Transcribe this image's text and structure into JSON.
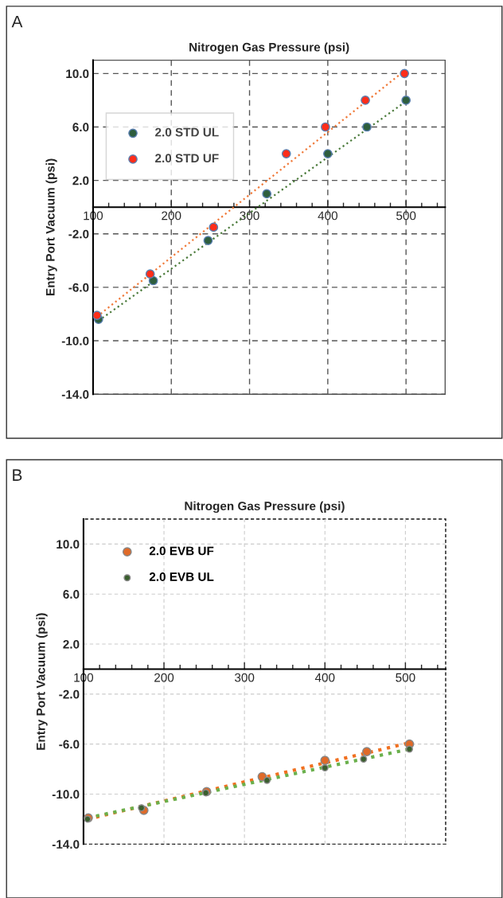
{
  "chart_data": [
    {
      "type": "scatter",
      "xlabel": "Nitrogen Gas Pressure (psi)",
      "ylabel": "Entry Port Vacuum (psi)",
      "annotations": [
        "A"
      ],
      "xlim": [
        100,
        550
      ],
      "xticks": [
        100,
        200,
        300,
        400,
        500
      ],
      "ylim": [
        -14,
        11
      ],
      "yticks": [
        {
          "value": 10,
          "label": "10.0"
        },
        {
          "value": 6,
          "label": "6.0"
        },
        {
          "value": 2,
          "label": "2.0"
        },
        {
          "value": -2,
          "label": "-2.0"
        },
        {
          "value": -6,
          "label": "-6.0"
        },
        {
          "value": -10,
          "label": "-10.0"
        },
        {
          "value": -14,
          "label": "-14.0"
        }
      ],
      "grid": true,
      "legend": "top left",
      "marker": "circle",
      "series": [
        {
          "name": "2.0 STD UL",
          "color": "#2e5e3e",
          "x": [
            107,
            177,
            247,
            322,
            400,
            450,
            500
          ],
          "values": [
            -8.4,
            -5.5,
            -2.5,
            1.0,
            4.0,
            6.0,
            8.0
          ]
        },
        {
          "name": "2.0 STD UF",
          "color": "#ff2d1a",
          "x": [
            105,
            173,
            254,
            347,
            397,
            448,
            498
          ],
          "values": [
            -8.1,
            -5.0,
            -1.5,
            4.0,
            6.0,
            8.0,
            10.0
          ]
        },
        {
          "type": "line",
          "color": "#f07a3a",
          "line_style": "dotted",
          "marker": "none",
          "x": [
            105,
            500
          ],
          "values": [
            -8.2,
            10.3
          ]
        },
        {
          "type": "line",
          "color": "#4a7a3a",
          "line_style": "dotted",
          "marker": "none",
          "x": [
            107,
            502
          ],
          "values": [
            -8.5,
            8.0
          ]
        }
      ]
    },
    {
      "type": "scatter",
      "xlabel": "Nitrogen Gas Pressure (psi)",
      "ylabel": "Entry Port Vacuum (psi)",
      "annotations": [
        "B"
      ],
      "xlim": [
        100,
        550
      ],
      "xticks": [
        100,
        200,
        300,
        400,
        500
      ],
      "ylim": [
        -14,
        12
      ],
      "yticks": [
        {
          "value": 10,
          "label": "10.0"
        },
        {
          "value": 6,
          "label": "6.0"
        },
        {
          "value": 2,
          "label": "2.0"
        },
        {
          "value": -2,
          "label": "-2.0"
        },
        {
          "value": -6,
          "label": "-6.0"
        },
        {
          "value": -10,
          "label": "-10.0"
        },
        {
          "value": -14,
          "label": "-14.0"
        }
      ],
      "grid": true,
      "legend": "top left",
      "marker": "circle",
      "series": [
        {
          "name": "2.0 EVB UF",
          "color": "#e06a28",
          "x": [
            106,
            175,
            253,
            322,
            400,
            452,
            505
          ],
          "values": [
            -11.9,
            -11.3,
            -9.8,
            -8.6,
            -7.3,
            -6.6,
            -6.0
          ]
        },
        {
          "name": "2.0 EVB UL",
          "color": "#3a5f2e",
          "x": [
            105,
            172,
            252,
            328,
            400,
            448,
            505
          ],
          "values": [
            -12.0,
            -11.1,
            -9.9,
            -8.9,
            -7.9,
            -7.2,
            -6.4
          ]
        },
        {
          "type": "line",
          "color": "#f07020",
          "line_style": "dotted",
          "marker": "none",
          "x": [
            105,
            505
          ],
          "values": [
            -12.0,
            -5.9
          ]
        },
        {
          "type": "line",
          "color": "#6ab04c",
          "line_style": "dotted",
          "marker": "none",
          "x": [
            105,
            505
          ],
          "values": [
            -11.9,
            -6.4
          ]
        }
      ]
    }
  ]
}
